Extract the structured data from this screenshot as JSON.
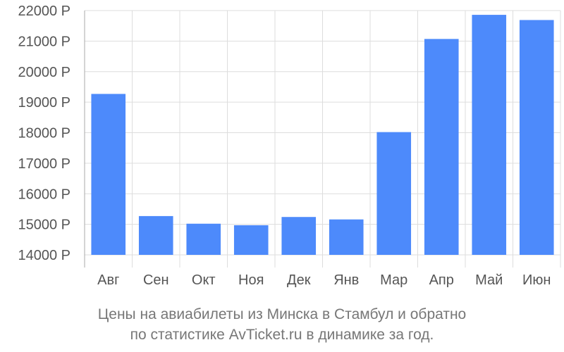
{
  "chart_data": {
    "type": "bar",
    "categories": [
      "Авг",
      "Сен",
      "Окт",
      "Ноя",
      "Дек",
      "Янв",
      "Мар",
      "Апр",
      "Май",
      "Июн"
    ],
    "values": [
      19270,
      15270,
      15020,
      14970,
      15240,
      15160,
      18020,
      21070,
      21860,
      21690
    ],
    "ylim": [
      14000,
      22000
    ],
    "yticks": [
      14000,
      15000,
      16000,
      17000,
      18000,
      19000,
      20000,
      21000,
      22000
    ],
    "ytick_suffix": " Р",
    "bar_color": "#4d8afb",
    "grid": true
  },
  "caption": {
    "line1": "Цены на авиабилеты из Минска в Стамбул и обратно",
    "line2": "по статистике AvTicket.ru в динамике за год."
  }
}
